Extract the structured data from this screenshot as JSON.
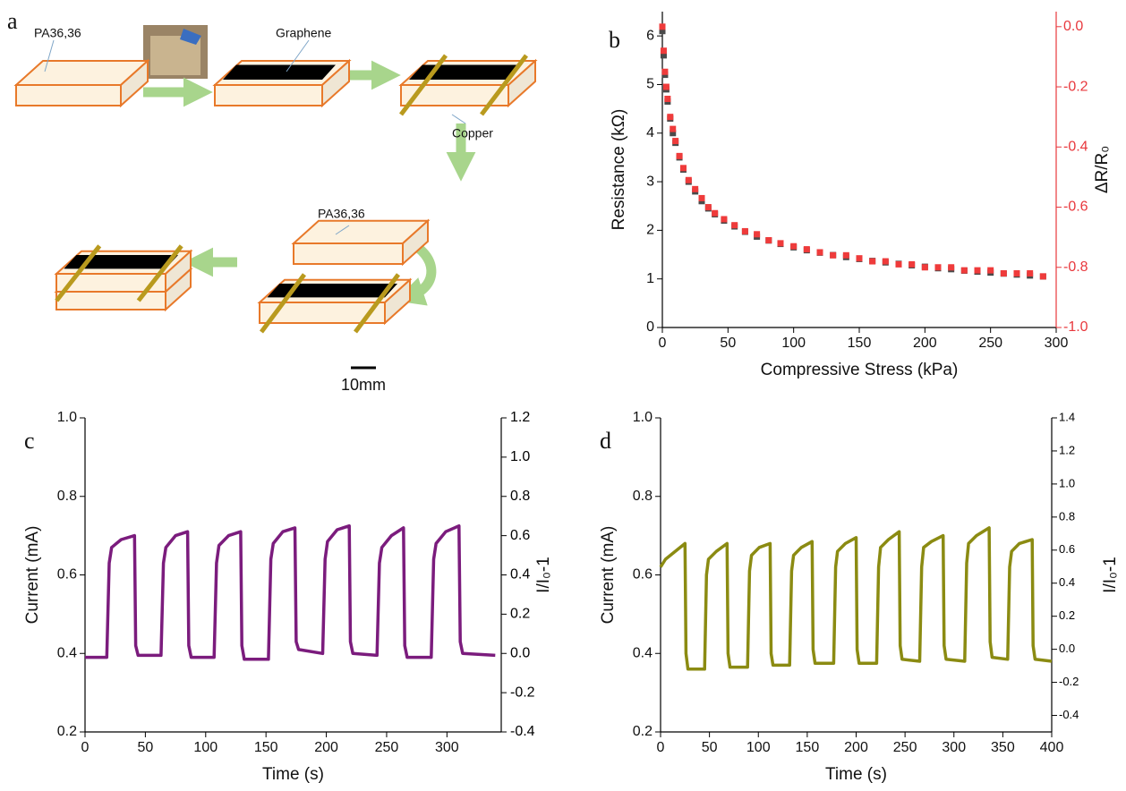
{
  "diagram": {
    "panel_label": "a",
    "labels": [
      "PA36,36",
      "Graphene",
      "Copper",
      "PA36,36"
    ],
    "scale_bar": "10mm"
  },
  "chart_data": [
    {
      "type": "scatter",
      "panel_label": "b",
      "xlabel": "Compressive Stress (kPa)",
      "ylabel": "Resistance (kΩ)",
      "y2label": "ΔR/R₀",
      "xlim": [
        0,
        300
      ],
      "xticks": [
        0,
        50,
        100,
        150,
        200,
        250,
        300
      ],
      "ylim": [
        0,
        6.5
      ],
      "yticks": [
        0,
        1,
        2,
        3,
        4,
        5,
        6
      ],
      "y2lim": [
        -1,
        0.05
      ],
      "y2ticks": [
        {
          "value": 0,
          "label": "0.0"
        },
        -0.2,
        -0.4,
        -0.6,
        -0.8,
        {
          "value": -1,
          "label": "-1.0"
        }
      ],
      "y2_axis_color": "#e8383d",
      "x": [
        0,
        1,
        2,
        3,
        4,
        6,
        8,
        10,
        13,
        16,
        20,
        25,
        30,
        35,
        40,
        47,
        55,
        63,
        72,
        81,
        90,
        100,
        110,
        120,
        130,
        140,
        150,
        160,
        170,
        180,
        190,
        200,
        210,
        220,
        230,
        240,
        250,
        260,
        270,
        280,
        290
      ],
      "series": [
        {
          "color": "#4a4a4a",
          "values": [
            6.1,
            5.6,
            5.2,
            4.9,
            4.65,
            4.3,
            4.0,
            3.8,
            3.5,
            3.25,
            3.0,
            2.8,
            2.6,
            2.45,
            2.33,
            2.2,
            2.08,
            1.97,
            1.87,
            1.79,
            1.72,
            1.65,
            1.59,
            1.54,
            1.49,
            1.45,
            1.41,
            1.37,
            1.34,
            1.31,
            1.28,
            1.25,
            1.22,
            1.2,
            1.17,
            1.15,
            1.13,
            1.11,
            1.09,
            1.07,
            1.05
          ]
        },
        {
          "color": "#ef3b3b",
          "axis": "y2",
          "values": [
            0,
            -0.08,
            -0.15,
            -0.2,
            -0.24,
            -0.3,
            -0.34,
            -0.38,
            -0.43,
            -0.47,
            -0.51,
            -0.54,
            -0.57,
            -0.6,
            -0.62,
            -0.64,
            -0.66,
            -0.68,
            -0.69,
            -0.71,
            -0.72,
            -0.73,
            -0.74,
            -0.75,
            -0.76,
            -0.76,
            -0.77,
            -0.78,
            -0.78,
            -0.79,
            -0.79,
            -0.8,
            -0.8,
            -0.8,
            -0.81,
            -0.81,
            -0.81,
            -0.82,
            -0.82,
            -0.82,
            -0.83
          ]
        }
      ]
    },
    {
      "type": "line",
      "panel_label": "c",
      "xlabel": "Time (s)",
      "ylabel": "Current (mA)",
      "y2label": "I/I₀-1",
      "xlim": [
        0,
        345
      ],
      "xticks": [
        0,
        50,
        100,
        150,
        200,
        250,
        300
      ],
      "ylim": [
        0.2,
        1.0
      ],
      "yticks": [
        0.2,
        0.4,
        0.6,
        0.8,
        {
          "value": 1,
          "label": "1.0"
        }
      ],
      "y2lim": [
        -0.4,
        1.2
      ],
      "y2ticks": [
        1.2,
        {
          "value": 1,
          "label": "1.0"
        },
        0.8,
        0.6,
        0.4,
        0.2,
        {
          "value": 0,
          "label": "0.0"
        },
        -0.2,
        -0.4
      ],
      "x": [
        0,
        18,
        20,
        22,
        30,
        41,
        42,
        44,
        63,
        65,
        67,
        75,
        85,
        86,
        88,
        107,
        109,
        111,
        119,
        129,
        130,
        132,
        152,
        154,
        156,
        164,
        174,
        175,
        177,
        197,
        199,
        201,
        209,
        219,
        220,
        222,
        242,
        244,
        246,
        254,
        264,
        265,
        267,
        287,
        289,
        291,
        299,
        310,
        311,
        313,
        340
      ],
      "series": [
        {
          "color": "#7b1c7d",
          "values": [
            0.39,
            0.39,
            0.63,
            0.67,
            0.69,
            0.7,
            0.42,
            0.395,
            0.395,
            0.63,
            0.67,
            0.7,
            0.71,
            0.42,
            0.39,
            0.39,
            0.63,
            0.675,
            0.7,
            0.71,
            0.42,
            0.385,
            0.385,
            0.64,
            0.68,
            0.71,
            0.72,
            0.43,
            0.41,
            0.4,
            0.64,
            0.685,
            0.715,
            0.725,
            0.43,
            0.4,
            0.395,
            0.63,
            0.67,
            0.7,
            0.72,
            0.42,
            0.39,
            0.39,
            0.64,
            0.68,
            0.71,
            0.725,
            0.43,
            0.4,
            0.395
          ]
        }
      ]
    },
    {
      "type": "line",
      "panel_label": "d",
      "xlabel": "Time (s)",
      "ylabel": "Current (mA)",
      "y2label": "I/I₀-1",
      "xlim": [
        0,
        400
      ],
      "xticks": [
        0,
        50,
        100,
        150,
        200,
        250,
        300,
        350,
        400
      ],
      "ylim": [
        0.2,
        1.0
      ],
      "yticks": [
        0.2,
        0.4,
        0.6,
        0.8,
        {
          "value": 1,
          "label": "1.0"
        }
      ],
      "y2lim": [
        -0.5,
        1.4
      ],
      "y2ticks": [
        1.4,
        1.2,
        {
          "value": 1,
          "label": "1.0"
        },
        0.8,
        0.6,
        0.4,
        0.2,
        {
          "value": 0,
          "label": "0.0"
        },
        -0.2,
        -0.4
      ],
      "x": [
        0,
        5,
        25,
        26,
        28,
        45,
        47,
        49,
        57,
        68,
        69,
        71,
        89,
        91,
        93,
        101,
        112,
        113,
        115,
        132,
        134,
        136,
        144,
        155,
        156,
        158,
        177,
        179,
        181,
        189,
        200,
        201,
        203,
        221,
        223,
        225,
        233,
        244,
        245,
        247,
        265,
        267,
        269,
        277,
        289,
        290,
        292,
        311,
        313,
        315,
        323,
        336,
        337,
        339,
        355,
        357,
        359,
        367,
        380,
        381,
        383,
        400
      ],
      "series": [
        {
          "color": "#8b8b12",
          "values": [
            0.62,
            0.64,
            0.68,
            0.4,
            0.36,
            0.36,
            0.6,
            0.64,
            0.66,
            0.68,
            0.4,
            0.365,
            0.365,
            0.61,
            0.65,
            0.67,
            0.68,
            0.4,
            0.37,
            0.37,
            0.61,
            0.65,
            0.67,
            0.685,
            0.41,
            0.375,
            0.375,
            0.62,
            0.66,
            0.68,
            0.695,
            0.41,
            0.375,
            0.375,
            0.62,
            0.67,
            0.69,
            0.71,
            0.42,
            0.385,
            0.38,
            0.62,
            0.67,
            0.685,
            0.7,
            0.42,
            0.385,
            0.38,
            0.63,
            0.68,
            0.7,
            0.72,
            0.43,
            0.39,
            0.385,
            0.62,
            0.66,
            0.68,
            0.69,
            0.42,
            0.385,
            0.38
          ]
        }
      ]
    }
  ]
}
